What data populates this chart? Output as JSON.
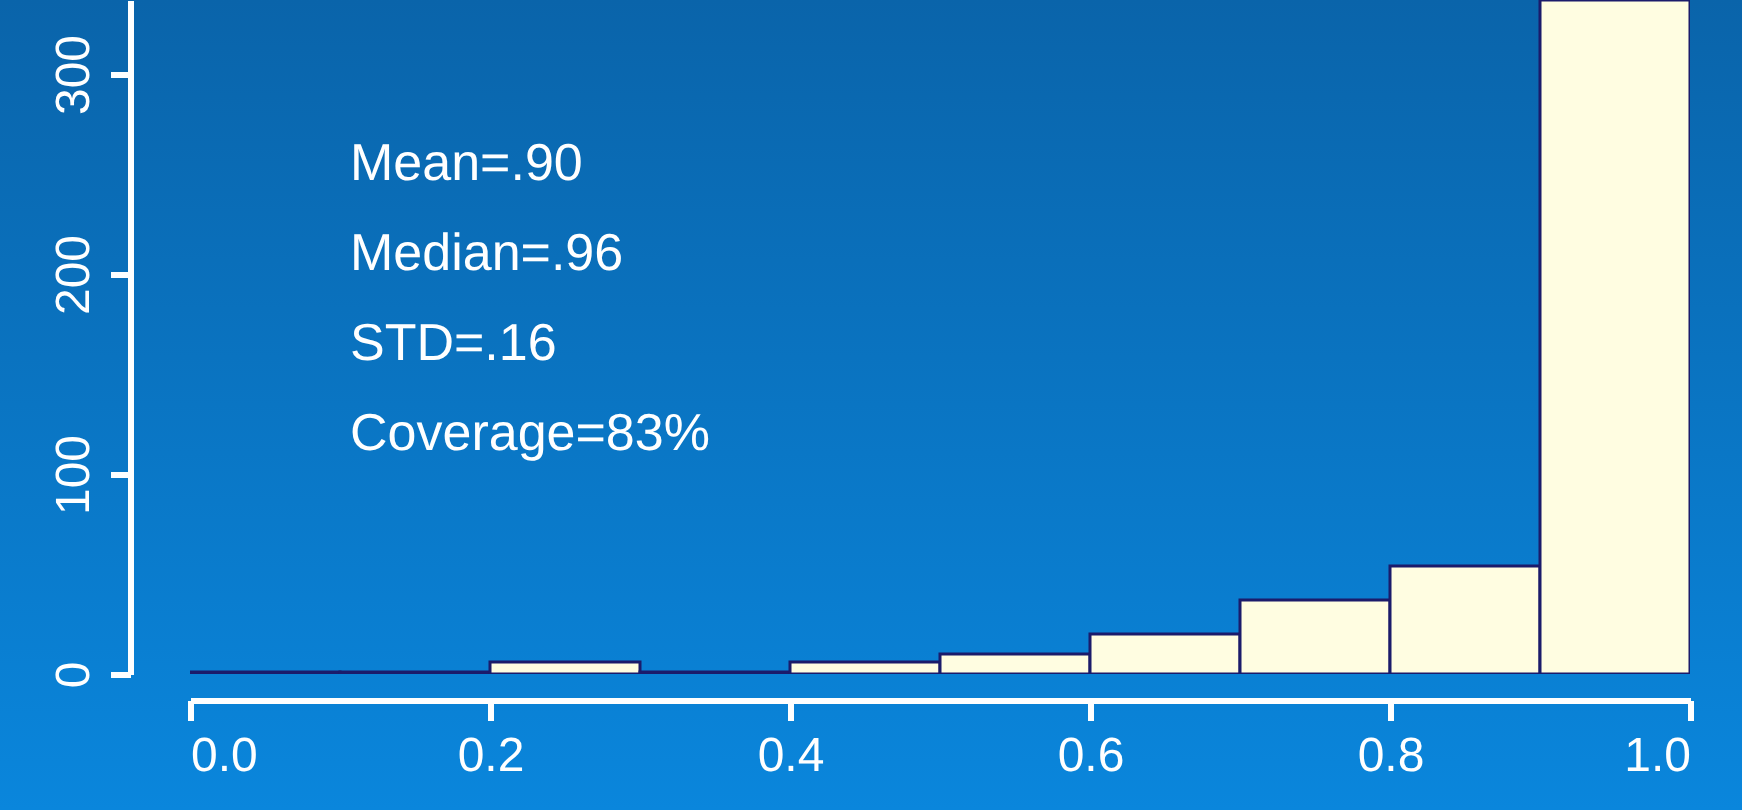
{
  "chart_data": {
    "type": "histogram",
    "bins": [
      0.0,
      0.1,
      0.2,
      0.3,
      0.4,
      0.5,
      0.6,
      0.7,
      0.8,
      0.9,
      1.0
    ],
    "values": [
      1,
      1,
      6,
      1,
      6,
      10,
      20,
      37,
      54,
      337
    ],
    "color": "#fffde1",
    "xlim": [
      0,
      1
    ],
    "xticks": [
      {
        "value": 0,
        "label": "0.0"
      },
      0.2,
      0.4,
      0.6,
      0.8,
      {
        "value": 1,
        "label": "1.0"
      }
    ],
    "ylim": [
      0,
      337
    ],
    "yticks": [
      0,
      100,
      200,
      300
    ],
    "annotations": [
      "Mean=.90",
      "Median=.96",
      "STD=.16",
      "Coverage=83%"
    ]
  }
}
